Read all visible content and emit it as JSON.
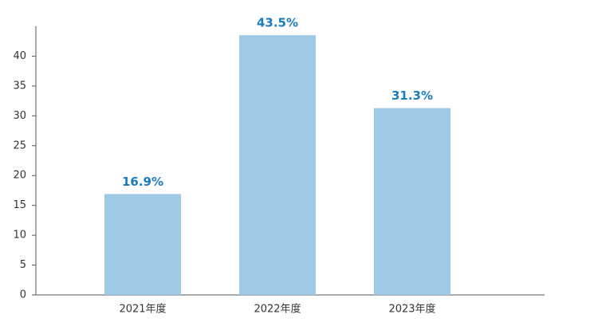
{
  "chart_data": {
    "type": "bar",
    "categories": [
      "2021年度",
      "2022年度",
      "2023年度"
    ],
    "values": [
      16.9,
      43.5,
      31.3
    ],
    "value_labels": [
      "16.9%",
      "43.5%",
      "31.3%"
    ],
    "color": "#9dc8e6",
    "label_color": "#1a7bbf",
    "ylim": [
      0,
      45
    ],
    "yticks": [
      0,
      5,
      10,
      15,
      20,
      25,
      30,
      35,
      40
    ],
    "grid": false
  }
}
